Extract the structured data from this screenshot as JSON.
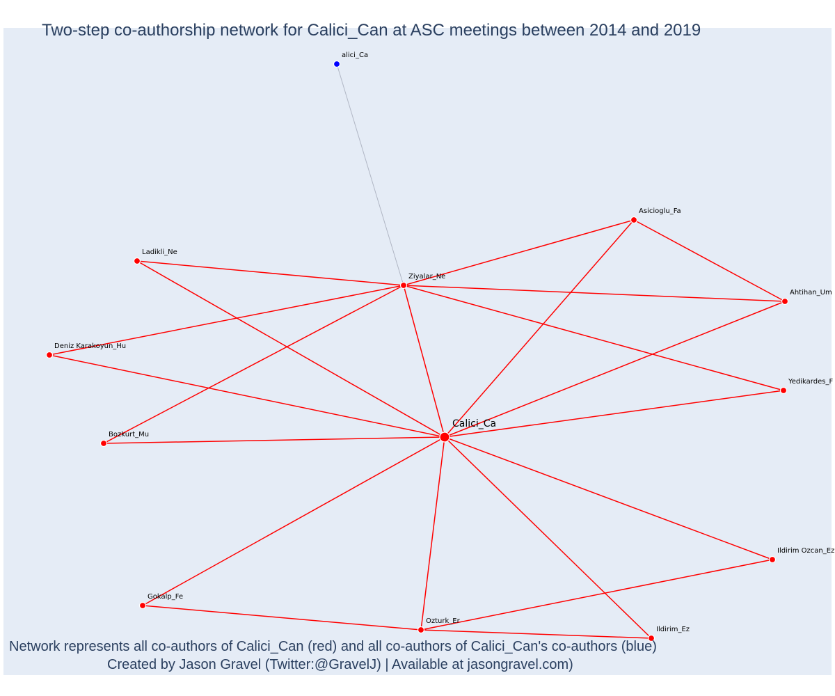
{
  "title": "Two-step co-authorship network for Calici_Can at ASC meetings between 2014 and 2019",
  "caption_line1": "Network represents all co-authors of Calici_Can (red) and all co-authors of Calici_Can's co-authors (blue)",
  "caption_line2": "Created by Jason Gravel (Twitter:@GravelJ) | Available at jasongravel.com)",
  "colors": {
    "background": "#e5ecf6",
    "first_degree": "#ff0000",
    "second_degree": "#0000ff",
    "second_degree_edge": "#b0b6c4",
    "text": "#2a3f5f"
  },
  "chart_data": {
    "type": "network",
    "nodes": [
      {
        "id": "Calici_Ca",
        "label": "Calici_Ca",
        "group": "center"
      },
      {
        "id": "Ziyalar_Ne",
        "label": "Ziyalar_Ne",
        "group": "coauthor"
      },
      {
        "id": "Asicioglu_Fa",
        "label": "Asicioglu_Fa",
        "group": "coauthor"
      },
      {
        "id": "Ahtihan_Um",
        "label": "Ahtihan_Um",
        "group": "coauthor"
      },
      {
        "id": "Yedikardes_F",
        "label": "Yedikardes_F",
        "group": "coauthor"
      },
      {
        "id": "Ladikli_Ne",
        "label": "Ladikli_Ne",
        "group": "coauthor"
      },
      {
        "id": "Deniz Karakoyun_Hu",
        "label": "Deniz Karakoyun_Hu",
        "group": "coauthor"
      },
      {
        "id": "Bozkurt_Mu",
        "label": "Bozkurt_Mu",
        "group": "coauthor"
      },
      {
        "id": "Gokalp_Fe",
        "label": "Gokalp_Fe",
        "group": "coauthor"
      },
      {
        "id": "Ozturk_Er",
        "label": "Ozturk_Er",
        "group": "coauthor"
      },
      {
        "id": "Ildirim_Ez",
        "label": "Ildirim_Ez",
        "group": "coauthor"
      },
      {
        "id": "Ildirim Ozcan_Ez",
        "label": "Ildirim Ozcan_Ez",
        "group": "coauthor"
      },
      {
        "id": "alici_Ca",
        "label": "alici_Ca",
        "group": "second"
      }
    ],
    "edges": [
      [
        "Calici_Ca",
        "Ziyalar_Ne"
      ],
      [
        "Calici_Ca",
        "Asicioglu_Fa"
      ],
      [
        "Calici_Ca",
        "Ahtihan_Um"
      ],
      [
        "Calici_Ca",
        "Yedikardes_F"
      ],
      [
        "Calici_Ca",
        "Ladikli_Ne"
      ],
      [
        "Calici_Ca",
        "Deniz Karakoyun_Hu"
      ],
      [
        "Calici_Ca",
        "Bozkurt_Mu"
      ],
      [
        "Calici_Ca",
        "Gokalp_Fe"
      ],
      [
        "Calici_Ca",
        "Ozturk_Er"
      ],
      [
        "Calici_Ca",
        "Ildirim_Ez"
      ],
      [
        "Calici_Ca",
        "Ildirim Ozcan_Ez"
      ],
      [
        "Ziyalar_Ne",
        "Asicioglu_Fa"
      ],
      [
        "Ziyalar_Ne",
        "Ahtihan_Um"
      ],
      [
        "Ziyalar_Ne",
        "Yedikardes_F"
      ],
      [
        "Ziyalar_Ne",
        "Ladikli_Ne"
      ],
      [
        "Ziyalar_Ne",
        "Deniz Karakoyun_Hu"
      ],
      [
        "Ziyalar_Ne",
        "Bozkurt_Mu"
      ],
      [
        "Asicioglu_Fa",
        "Ahtihan_Um"
      ],
      [
        "Gokalp_Fe",
        "Ozturk_Er"
      ],
      [
        "Ozturk_Er",
        "Ildirim_Ez"
      ],
      [
        "Ozturk_Er",
        "Ildirim Ozcan_Ez"
      ],
      [
        "Ziyalar_Ne",
        "alici_Ca"
      ]
    ]
  }
}
